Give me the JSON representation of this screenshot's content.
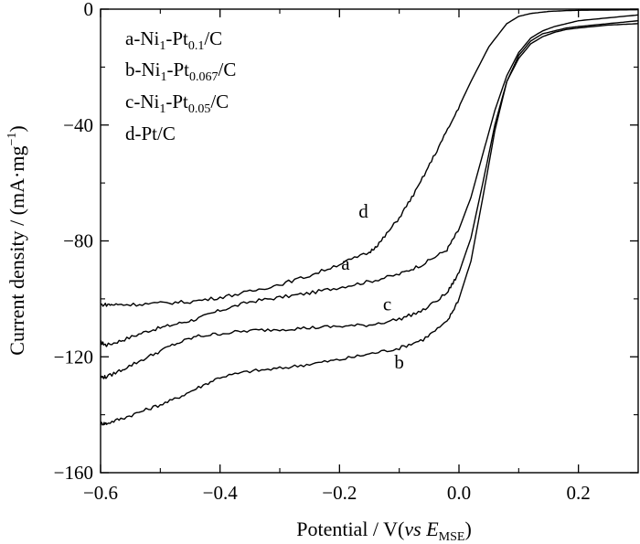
{
  "chart_data": {
    "type": "line",
    "title": "",
    "xlabel": {
      "pre": "Potential / V(",
      "vs": "vs",
      "E": "E",
      "sub": "MSE",
      "post": ")"
    },
    "ylabel": {
      "pre": "Current  density / (mA·mg",
      "sup": "−1",
      "post": ")"
    },
    "xlim": [
      -0.6,
      0.3
    ],
    "ylim": [
      -160,
      0
    ],
    "xticks": [
      -0.6,
      -0.4,
      -0.2,
      0.0,
      0.2
    ],
    "xtick_labels": [
      "−0.6",
      "−0.4",
      "−0.2",
      "0.0",
      "0.2"
    ],
    "yticks": [
      -160,
      -120,
      -80,
      -40,
      0
    ],
    "ytick_labels": [
      "−160",
      "−120",
      "−80",
      "−40",
      "0"
    ],
    "grid": false,
    "legend_position": "top-left",
    "legend": [
      {
        "prefix": "a-Ni",
        "s1": "1",
        "mid": "-Pt",
        "s2": "0.1",
        "suffix": "/C"
      },
      {
        "prefix": "b-Ni",
        "s1": "1",
        "mid": "-Pt",
        "s2": "0.067",
        "suffix": "/C"
      },
      {
        "prefix": "c-Ni",
        "s1": "1",
        "mid": "-Pt",
        "s2": "0.05",
        "suffix": "/C"
      },
      {
        "prefix": "d-Pt/C",
        "s1": "",
        "mid": "",
        "s2": "",
        "suffix": ""
      }
    ],
    "series": [
      {
        "name": "a",
        "label_at": [
          -0.19,
          -90
        ],
        "x": [
          -0.6,
          -0.59,
          -0.56,
          -0.52,
          -0.48,
          -0.44,
          -0.4,
          -0.35,
          -0.3,
          -0.25,
          -0.2,
          -0.15,
          -0.1,
          -0.06,
          -0.02,
          0.0,
          0.02,
          0.04,
          0.06,
          0.08,
          0.1,
          0.12,
          0.14,
          0.16,
          0.18,
          0.2,
          0.25,
          0.3
        ],
        "y": [
          -115,
          -116,
          -114,
          -111,
          -109,
          -107,
          -104,
          -101,
          -99.5,
          -98,
          -96,
          -94,
          -91.5,
          -88,
          -83,
          -76,
          -65,
          -50,
          -35,
          -23,
          -15,
          -10,
          -7.5,
          -6,
          -5,
          -4,
          -3,
          -2
        ]
      },
      {
        "name": "b",
        "label_at": [
          -0.1,
          -124
        ],
        "x": [
          -0.6,
          -0.59,
          -0.56,
          -0.52,
          -0.48,
          -0.44,
          -0.4,
          -0.35,
          -0.3,
          -0.25,
          -0.2,
          -0.15,
          -0.1,
          -0.06,
          -0.02,
          0.0,
          0.02,
          0.04,
          0.06,
          0.08,
          0.1,
          0.12,
          0.14,
          0.16,
          0.18,
          0.2,
          0.25,
          0.3
        ],
        "y": [
          -143,
          -143,
          -141,
          -138,
          -135,
          -131,
          -127,
          -125,
          -124,
          -122.5,
          -121,
          -119,
          -117,
          -114,
          -108,
          -100,
          -87,
          -65,
          -42,
          -25,
          -16,
          -11,
          -8.5,
          -7.5,
          -6.5,
          -6,
          -5,
          -4
        ]
      },
      {
        "name": "c",
        "label_at": [
          -0.12,
          -104
        ],
        "x": [
          -0.6,
          -0.59,
          -0.56,
          -0.52,
          -0.48,
          -0.44,
          -0.4,
          -0.35,
          -0.3,
          -0.25,
          -0.2,
          -0.15,
          -0.1,
          -0.06,
          -0.02,
          0.0,
          0.02,
          0.04,
          0.06,
          0.08,
          0.1,
          0.12,
          0.14,
          0.16,
          0.18,
          0.2,
          0.25,
          0.3
        ],
        "y": [
          -127,
          -127,
          -124,
          -120,
          -116,
          -113,
          -112,
          -111,
          -110.5,
          -110,
          -109.5,
          -109,
          -107,
          -104,
          -98,
          -91,
          -79,
          -60,
          -40,
          -25,
          -17,
          -12,
          -9.5,
          -8,
          -7,
          -6.5,
          -5.5,
          -5
        ]
      },
      {
        "name": "d",
        "label_at": [
          -0.16,
          -72
        ],
        "x": [
          -0.6,
          -0.58,
          -0.55,
          -0.5,
          -0.45,
          -0.4,
          -0.35,
          -0.3,
          -0.25,
          -0.2,
          -0.15,
          -0.13,
          -0.1,
          -0.07,
          -0.04,
          -0.01,
          0.02,
          0.05,
          0.08,
          0.1,
          0.12,
          0.15,
          0.18,
          0.2,
          0.25,
          0.3
        ],
        "y": [
          -102,
          -102,
          -102,
          -101.5,
          -101,
          -99.5,
          -97.5,
          -95,
          -92,
          -88,
          -84,
          -80,
          -72,
          -62,
          -50,
          -38,
          -25,
          -13,
          -5,
          -2.5,
          -1.5,
          -0.8,
          -0.5,
          -0.4,
          -0.3,
          -0.2
        ]
      }
    ]
  }
}
